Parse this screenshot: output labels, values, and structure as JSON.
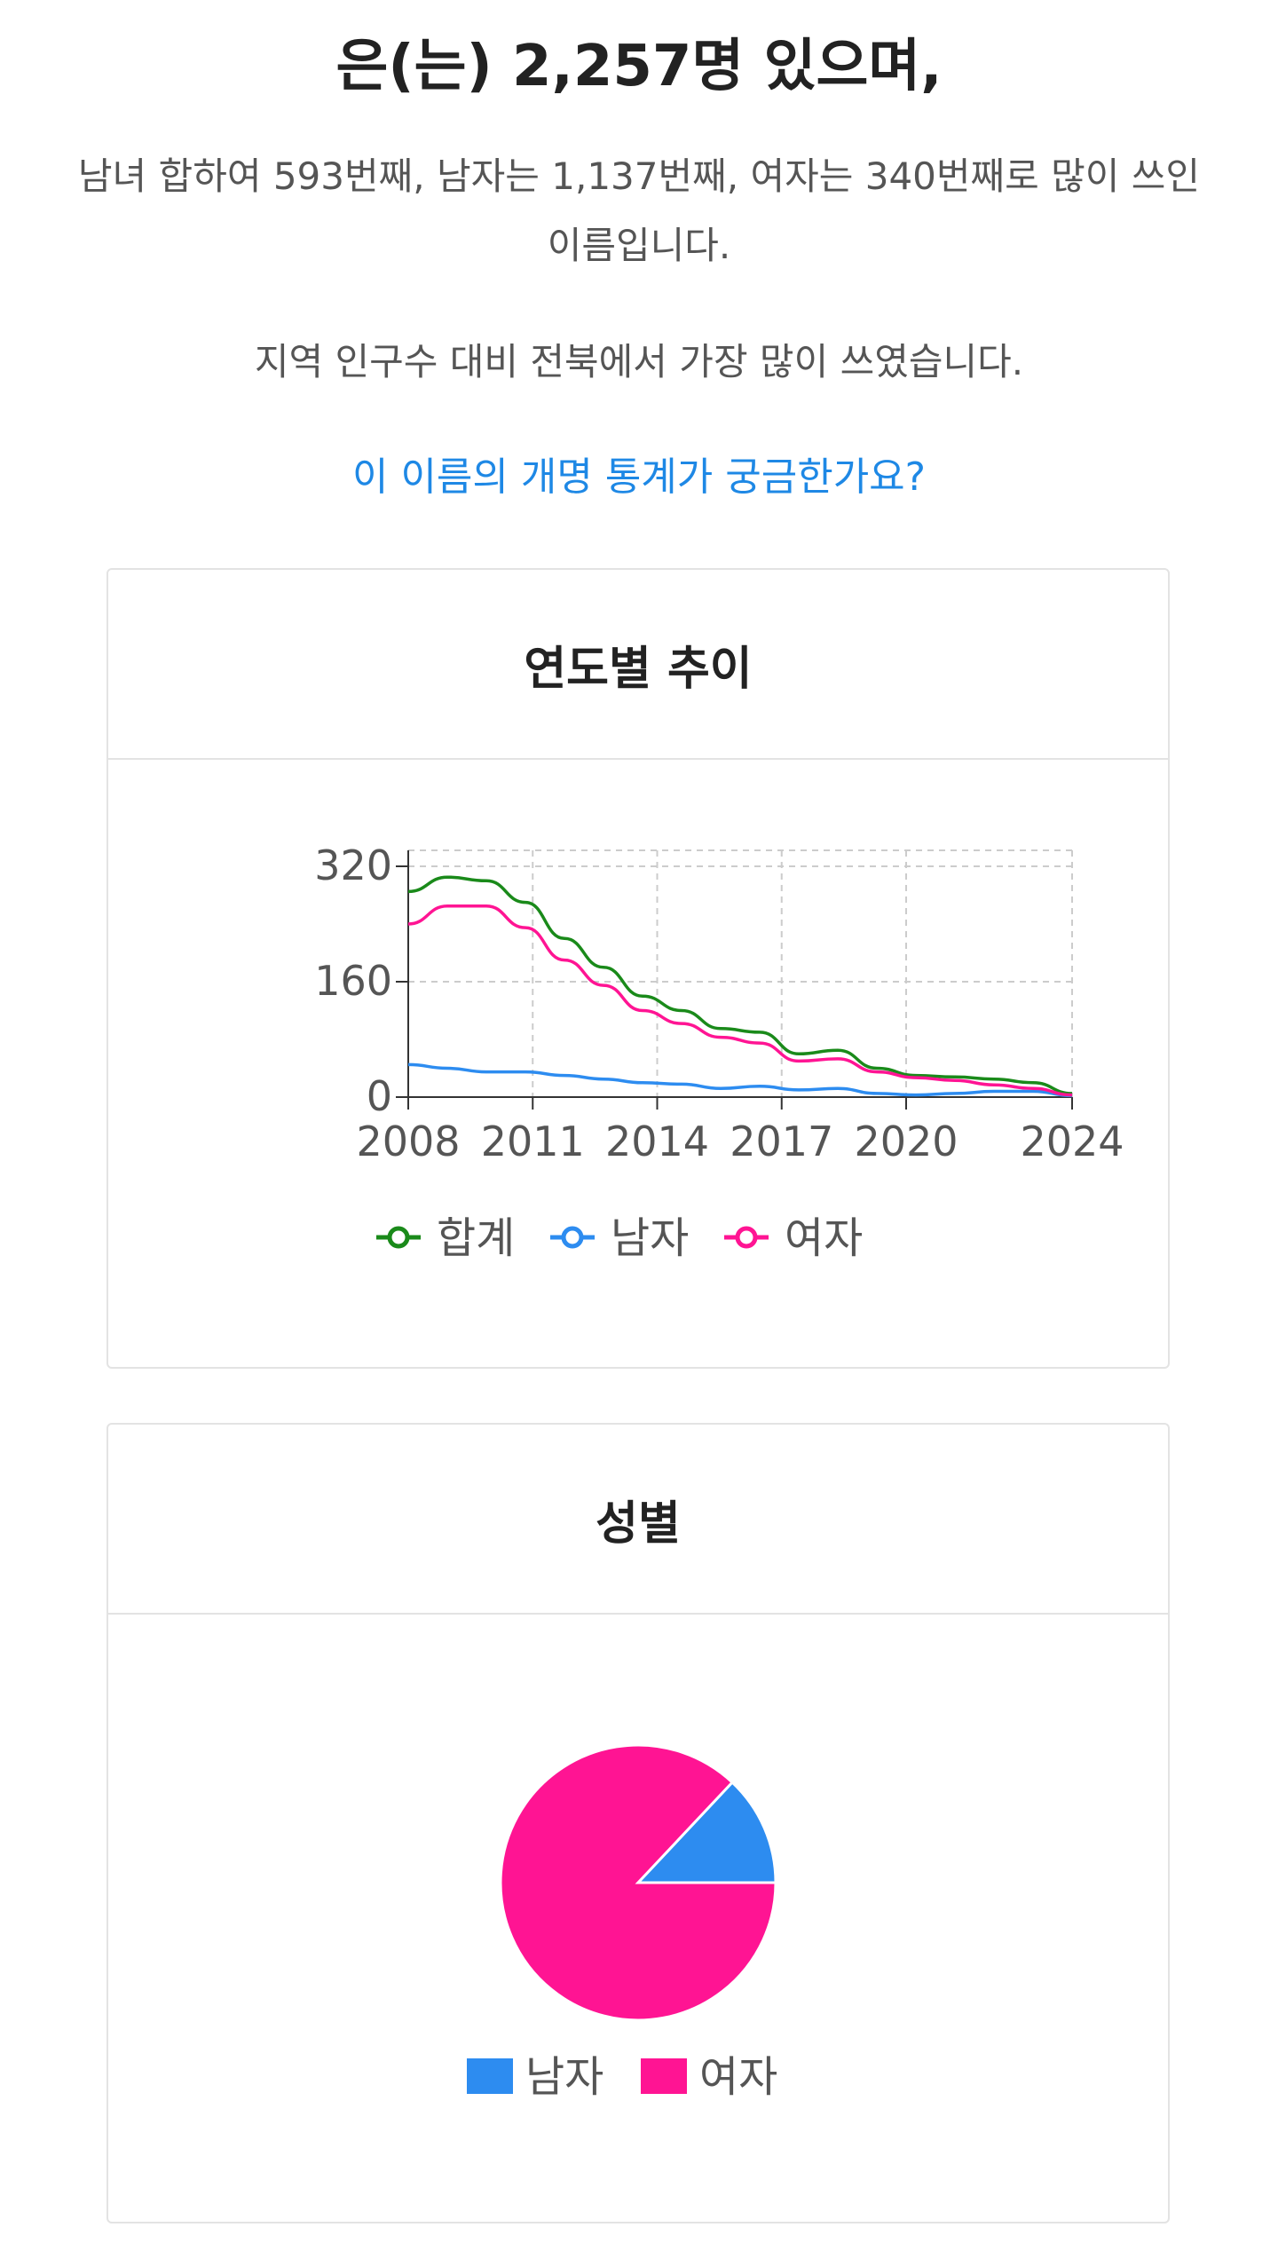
{
  "headline": "은(는) 2,257명 있으며,",
  "summary": {
    "rank_sentence": "남녀 합하여 593번째, 남자는 1,137번째, 여자는 340번째로 많이 쓰인 이름입니다.",
    "region_sentence": "지역 인구수 대비 전북에서 가장 많이 쓰였습니다."
  },
  "detail_link": "이 이름의 개명 통계가 궁금한가요?",
  "colors": {
    "total": "#1a8a1a",
    "male": "#2d8cf0",
    "female": "#ff1493",
    "link": "#1e88e5",
    "grid": "#cccccc"
  },
  "trend_card": {
    "title": "연도별 추이",
    "chart_data": {
      "type": "line",
      "x": [
        2008,
        2009,
        2010,
        2011,
        2012,
        2013,
        2014,
        2015,
        2016,
        2017,
        2018,
        2019,
        2020,
        2021,
        2022,
        2023,
        2024,
        2025
      ],
      "xticks": [
        "2008",
        "2011",
        "2014",
        "2017",
        "2020",
        "2024"
      ],
      "yticks": [
        "0",
        "160",
        "320"
      ],
      "xlim": [
        2008,
        2024
      ],
      "ylim": [
        0,
        320
      ],
      "grid": true,
      "legend_position": "bottom",
      "series": [
        {
          "name": "합계",
          "color": "#1a8a1a",
          "values": [
            285,
            305,
            300,
            270,
            220,
            180,
            140,
            120,
            95,
            90,
            60,
            65,
            40,
            30,
            28,
            25,
            20,
            5
          ]
        },
        {
          "name": "남자",
          "color": "#2d8cf0",
          "values": [
            45,
            40,
            35,
            35,
            30,
            25,
            20,
            18,
            12,
            15,
            10,
            12,
            5,
            3,
            5,
            8,
            8,
            2
          ]
        },
        {
          "name": "여자",
          "color": "#ff1493",
          "values": [
            240,
            265,
            265,
            235,
            190,
            155,
            120,
            102,
            83,
            75,
            50,
            53,
            35,
            27,
            23,
            17,
            12,
            3
          ]
        }
      ]
    }
  },
  "gender_card": {
    "title": "성별",
    "chart_data": {
      "type": "pie",
      "labels": [
        "남자",
        "여자"
      ],
      "values": [
        13,
        87
      ],
      "colors": [
        "#2d8cf0",
        "#ff1493"
      ],
      "legend_position": "bottom"
    }
  }
}
